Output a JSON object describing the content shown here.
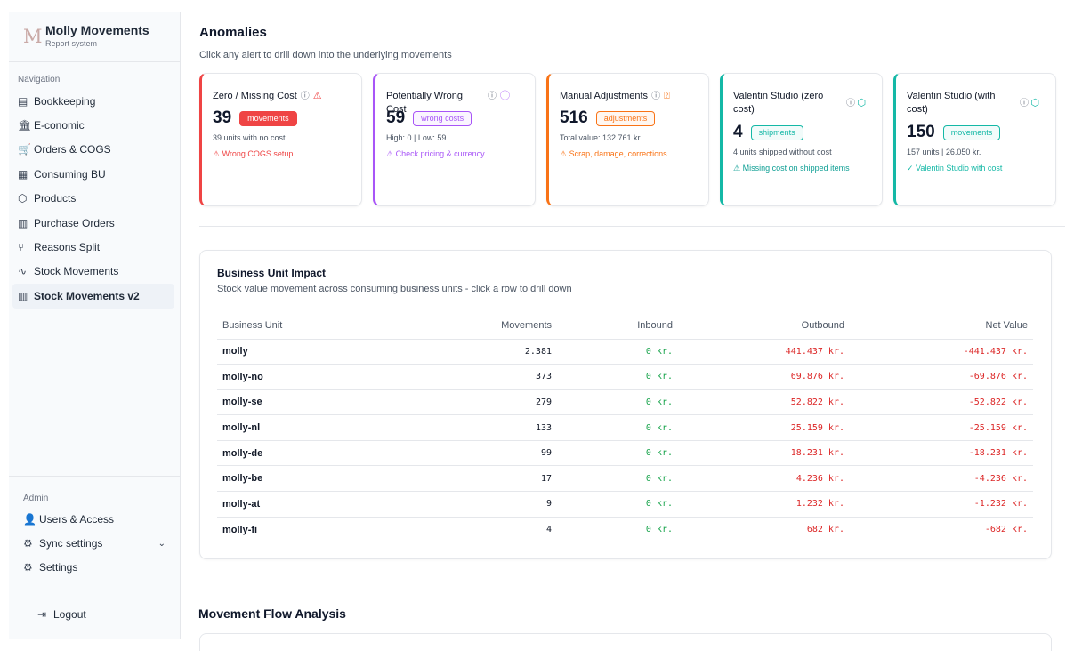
{
  "brand": {
    "logo": "M",
    "name": "Molly Movements",
    "subtitle": "Report system"
  },
  "nav": {
    "heading": "Navigation",
    "items": [
      {
        "label": "Bookkeeping",
        "icon": "ledger-icon",
        "glyph": "▤"
      },
      {
        "label": "E-conomic",
        "icon": "bank-icon",
        "glyph": "🏛"
      },
      {
        "label": "Orders & COGS",
        "icon": "cart-icon",
        "glyph": "🛒"
      },
      {
        "label": "Consuming BU",
        "icon": "building-icon",
        "glyph": "▦"
      },
      {
        "label": "Products",
        "icon": "box-icon",
        "glyph": "⬡"
      },
      {
        "label": "Purchase Orders",
        "icon": "bar-chart-icon",
        "glyph": "▥"
      },
      {
        "label": "Reasons Split",
        "icon": "split-icon",
        "glyph": "⑂"
      },
      {
        "label": "Stock Movements",
        "icon": "activity-icon",
        "glyph": "∿"
      },
      {
        "label": "Stock Movements v2",
        "icon": "bar-chart-icon",
        "glyph": "▥"
      }
    ],
    "active_index": 8
  },
  "admin": {
    "heading": "Admin",
    "items": [
      {
        "label": "Users & Access",
        "icon": "user-plus-icon",
        "glyph": "👤"
      },
      {
        "label": "Sync settings",
        "icon": "gear-icon",
        "glyph": "⚙",
        "expand": "⌄"
      },
      {
        "label": "Settings",
        "icon": "gear-icon",
        "glyph": "⚙"
      }
    ],
    "logout": {
      "label": "Logout",
      "icon": "logout-icon",
      "glyph": "⇥"
    }
  },
  "anomalies": {
    "title": "Anomalies",
    "subtitle": "Click any alert to drill down into the underlying movements",
    "cards": [
      {
        "title": "Zero / Missing Cost",
        "info": "ⓘ",
        "alert_glyph": "⚠",
        "value": "39",
        "badge": "movements",
        "sub": "39 units with no cost",
        "warn": "⚠ Wrong COGS setup",
        "color": "#ef4444"
      },
      {
        "title": "Potentially Wrong Cost",
        "info": "ⓘ",
        "alert_glyph": "ⓘ",
        "value": "59",
        "badge": "wrong costs",
        "sub": "High: 0 | Low: 59",
        "warn": "⚠ Check pricing & currency",
        "color": "#a855f7"
      },
      {
        "title": "Manual Adjustments",
        "info": "ⓘ",
        "alert_glyph": "⍰",
        "value": "516",
        "badge": "adjustments",
        "sub": "Total value: 132.761 kr.",
        "warn": "⚠ Scrap, damage, corrections",
        "color": "#f97316"
      },
      {
        "title": "Valentin Studio (zero cost)",
        "info": "ⓘ",
        "alert_glyph": "⬡",
        "value": "4",
        "badge": "shipments",
        "sub": "4 units shipped without cost",
        "warn": "⚠ Missing cost on shipped items",
        "color": "#14b8a6"
      },
      {
        "title": "Valentin Studio (with cost)",
        "info": "ⓘ",
        "alert_glyph": "⬡",
        "value": "150",
        "badge": "movements",
        "sub": "157 units | 26.050 kr.",
        "warn": "✓ Valentin Studio with cost",
        "color": "#14b8a6"
      }
    ]
  },
  "business_unit_impact": {
    "title": "Business Unit Impact",
    "subtitle": "Stock value movement across consuming business units - click a row to drill down",
    "columns": [
      "Business Unit",
      "Movements",
      "Inbound",
      "Outbound",
      "Net Value"
    ],
    "rows": [
      {
        "unit": "molly",
        "movements": "2.381",
        "inbound": "0 kr.",
        "outbound": "441.437 kr.",
        "net": "-441.437 kr."
      },
      {
        "unit": "molly-no",
        "movements": "373",
        "inbound": "0 kr.",
        "outbound": "69.876 kr.",
        "net": "-69.876 kr."
      },
      {
        "unit": "molly-se",
        "movements": "279",
        "inbound": "0 kr.",
        "outbound": "52.822 kr.",
        "net": "-52.822 kr."
      },
      {
        "unit": "molly-nl",
        "movements": "133",
        "inbound": "0 kr.",
        "outbound": "25.159 kr.",
        "net": "-25.159 kr."
      },
      {
        "unit": "molly-de",
        "movements": "99",
        "inbound": "0 kr.",
        "outbound": "18.231 kr.",
        "net": "-18.231 kr."
      },
      {
        "unit": "molly-be",
        "movements": "17",
        "inbound": "0 kr.",
        "outbound": "4.236 kr.",
        "net": "-4.236 kr."
      },
      {
        "unit": "molly-at",
        "movements": "9",
        "inbound": "0 kr.",
        "outbound": "1.232 kr.",
        "net": "-1.232 kr."
      },
      {
        "unit": "molly-fi",
        "movements": "4",
        "inbound": "0 kr.",
        "outbound": "682 kr.",
        "net": "-682 kr."
      }
    ],
    "colors": {
      "inbound": "#16a34a",
      "outbound": "#dc2626"
    }
  },
  "movement_flow": {
    "title": "Movement Flow Analysis"
  }
}
